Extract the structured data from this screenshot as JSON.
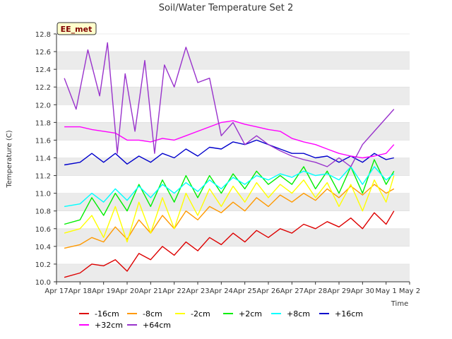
{
  "chart_data": {
    "type": "line",
    "title": "Soil/Water Temperature Set 2",
    "xlabel": "Time",
    "ylabel": "Temperature (C)",
    "ylim": [
      10.0,
      12.8
    ],
    "xlim": [
      "2024-04-17",
      "2024-05-02"
    ],
    "x_tick_labels": [
      "Apr 17",
      "Apr 18",
      "Apr 19",
      "Apr 20",
      "Apr 21",
      "Apr 22",
      "Apr 23",
      "Apr 24",
      "Apr 25",
      "Apr 26",
      "Apr 27",
      "Apr 28",
      "Apr 29",
      "Apr 30",
      "May 1",
      "May 2"
    ],
    "y_ticks": [
      10.0,
      10.2,
      10.4,
      10.6,
      10.8,
      11.0,
      11.2,
      11.4,
      11.6,
      11.8,
      12.0,
      12.2,
      12.4,
      12.6,
      12.8
    ],
    "y_tick_labels": [
      "10.0",
      "10.2",
      "10.4",
      "10.6",
      "10.8",
      "11.0",
      "11.2",
      "11.4",
      "11.6",
      "11.8",
      "12.0",
      "12.2",
      "12.4",
      "12.6",
      "12.8"
    ],
    "grid": "horizontal bands",
    "annotation": "EE_met",
    "legend_position": "bottom",
    "series": [
      {
        "name": "-16cm",
        "color": "#dd0000",
        "x": [
          "2024-04-17T08:00",
          "2024-04-18T00:00",
          "2024-04-18T12:00",
          "2024-04-19T00:00",
          "2024-04-19T12:00",
          "2024-04-20T00:00",
          "2024-04-20T12:00",
          "2024-04-21T00:00",
          "2024-04-21T12:00",
          "2024-04-22T00:00",
          "2024-04-22T12:00",
          "2024-04-23T00:00",
          "2024-04-23T12:00",
          "2024-04-24T00:00",
          "2024-04-24T12:00",
          "2024-04-25T00:00",
          "2024-04-25T12:00",
          "2024-04-26T00:00",
          "2024-04-26T12:00",
          "2024-04-27T00:00",
          "2024-04-27T12:00",
          "2024-04-28T00:00",
          "2024-04-28T12:00",
          "2024-04-29T00:00",
          "2024-04-29T12:00",
          "2024-04-30T00:00",
          "2024-04-30T12:00",
          "2024-05-01T00:00",
          "2024-05-01T08:00"
        ],
        "y": [
          10.05,
          10.1,
          10.2,
          10.18,
          10.25,
          10.12,
          10.32,
          10.25,
          10.4,
          10.3,
          10.45,
          10.35,
          10.5,
          10.42,
          10.55,
          10.45,
          10.58,
          10.5,
          10.6,
          10.55,
          10.65,
          10.6,
          10.68,
          10.62,
          10.72,
          10.6,
          10.78,
          10.65,
          10.8
        ]
      },
      {
        "name": "-8cm",
        "color": "#ff9900",
        "x": [
          "2024-04-17T08:00",
          "2024-04-18T00:00",
          "2024-04-18T12:00",
          "2024-04-19T00:00",
          "2024-04-19T12:00",
          "2024-04-20T00:00",
          "2024-04-20T12:00",
          "2024-04-21T00:00",
          "2024-04-21T12:00",
          "2024-04-22T00:00",
          "2024-04-22T12:00",
          "2024-04-23T00:00",
          "2024-04-23T12:00",
          "2024-04-24T00:00",
          "2024-04-24T12:00",
          "2024-04-25T00:00",
          "2024-04-25T12:00",
          "2024-04-26T00:00",
          "2024-04-26T12:00",
          "2024-04-27T00:00",
          "2024-04-27T12:00",
          "2024-04-28T00:00",
          "2024-04-28T12:00",
          "2024-04-29T00:00",
          "2024-04-29T12:00",
          "2024-04-30T00:00",
          "2024-04-30T12:00",
          "2024-05-01T00:00",
          "2024-05-01T08:00"
        ],
        "y": [
          10.38,
          10.42,
          10.5,
          10.45,
          10.62,
          10.48,
          10.7,
          10.55,
          10.75,
          10.6,
          10.8,
          10.7,
          10.85,
          10.78,
          10.9,
          10.8,
          10.95,
          10.85,
          10.98,
          10.9,
          11.0,
          10.92,
          11.05,
          10.95,
          11.08,
          10.98,
          11.1,
          11.0,
          11.05
        ]
      },
      {
        "name": "-2cm",
        "color": "#ffff00",
        "x": [
          "2024-04-17T08:00",
          "2024-04-18T00:00",
          "2024-04-18T12:00",
          "2024-04-19T00:00",
          "2024-04-19T12:00",
          "2024-04-20T00:00",
          "2024-04-20T12:00",
          "2024-04-21T00:00",
          "2024-04-21T12:00",
          "2024-04-22T00:00",
          "2024-04-22T12:00",
          "2024-04-23T00:00",
          "2024-04-23T12:00",
          "2024-04-24T00:00",
          "2024-04-24T12:00",
          "2024-04-25T00:00",
          "2024-04-25T12:00",
          "2024-04-26T00:00",
          "2024-04-26T12:00",
          "2024-04-27T00:00",
          "2024-04-27T12:00",
          "2024-04-28T00:00",
          "2024-04-28T12:00",
          "2024-04-29T00:00",
          "2024-04-29T12:00",
          "2024-04-30T00:00",
          "2024-04-30T12:00",
          "2024-05-01T00:00",
          "2024-05-01T08:00"
        ],
        "y": [
          10.55,
          10.6,
          10.75,
          10.5,
          10.85,
          10.45,
          10.9,
          10.55,
          10.95,
          10.6,
          11.0,
          10.75,
          11.05,
          10.85,
          11.08,
          10.9,
          11.12,
          10.95,
          11.1,
          11.0,
          11.15,
          10.95,
          11.12,
          10.85,
          11.1,
          10.8,
          11.15,
          10.9,
          11.2
        ]
      },
      {
        "name": "+2cm",
        "color": "#00ee00",
        "x": [
          "2024-04-17T08:00",
          "2024-04-18T00:00",
          "2024-04-18T12:00",
          "2024-04-19T00:00",
          "2024-04-19T12:00",
          "2024-04-20T00:00",
          "2024-04-20T12:00",
          "2024-04-21T00:00",
          "2024-04-21T12:00",
          "2024-04-22T00:00",
          "2024-04-22T12:00",
          "2024-04-23T00:00",
          "2024-04-23T12:00",
          "2024-04-24T00:00",
          "2024-04-24T12:00",
          "2024-04-25T00:00",
          "2024-04-25T12:00",
          "2024-04-26T00:00",
          "2024-04-26T12:00",
          "2024-04-27T00:00",
          "2024-04-27T12:00",
          "2024-04-28T00:00",
          "2024-04-28T12:00",
          "2024-04-29T00:00",
          "2024-04-29T12:00",
          "2024-04-30T00:00",
          "2024-04-30T12:00",
          "2024-05-01T00:00",
          "2024-05-01T08:00"
        ],
        "y": [
          10.65,
          10.7,
          10.95,
          10.75,
          11.0,
          10.8,
          11.1,
          10.85,
          11.15,
          10.9,
          11.2,
          10.95,
          11.2,
          11.0,
          11.22,
          11.05,
          11.25,
          11.1,
          11.2,
          11.1,
          11.3,
          11.05,
          11.25,
          11.0,
          11.3,
          11.0,
          11.38,
          11.1,
          11.25
        ]
      },
      {
        "name": "+8cm",
        "color": "#00ffff",
        "x": [
          "2024-04-17T08:00",
          "2024-04-18T00:00",
          "2024-04-18T12:00",
          "2024-04-19T00:00",
          "2024-04-19T12:00",
          "2024-04-20T00:00",
          "2024-04-20T12:00",
          "2024-04-21T00:00",
          "2024-04-21T12:00",
          "2024-04-22T00:00",
          "2024-04-22T12:00",
          "2024-04-23T00:00",
          "2024-04-23T12:00",
          "2024-04-24T00:00",
          "2024-04-24T12:00",
          "2024-04-25T00:00",
          "2024-04-25T12:00",
          "2024-04-26T00:00",
          "2024-04-26T12:00",
          "2024-04-27T00:00",
          "2024-04-27T12:00",
          "2024-04-28T00:00",
          "2024-04-28T12:00",
          "2024-04-29T00:00",
          "2024-04-29T12:00",
          "2024-04-30T00:00",
          "2024-04-30T12:00",
          "2024-05-01T00:00",
          "2024-05-01T08:00"
        ],
        "y": [
          10.85,
          10.88,
          11.0,
          10.9,
          11.05,
          10.92,
          11.08,
          10.95,
          11.1,
          11.0,
          11.12,
          11.02,
          11.15,
          11.05,
          11.18,
          11.1,
          11.2,
          11.15,
          11.22,
          11.18,
          11.25,
          11.2,
          11.22,
          11.15,
          11.3,
          11.1,
          11.3,
          11.15,
          11.22
        ]
      },
      {
        "name": "+16cm",
        "color": "#0000cc",
        "x": [
          "2024-04-17T08:00",
          "2024-04-18T00:00",
          "2024-04-18T12:00",
          "2024-04-19T00:00",
          "2024-04-19T12:00",
          "2024-04-20T00:00",
          "2024-04-20T12:00",
          "2024-04-21T00:00",
          "2024-04-21T12:00",
          "2024-04-22T00:00",
          "2024-04-22T12:00",
          "2024-04-23T00:00",
          "2024-04-23T12:00",
          "2024-04-24T00:00",
          "2024-04-24T12:00",
          "2024-04-25T00:00",
          "2024-04-25T12:00",
          "2024-04-26T00:00",
          "2024-04-26T12:00",
          "2024-04-27T00:00",
          "2024-04-27T12:00",
          "2024-04-28T00:00",
          "2024-04-28T12:00",
          "2024-04-29T00:00",
          "2024-04-29T12:00",
          "2024-04-30T00:00",
          "2024-04-30T12:00",
          "2024-05-01T00:00",
          "2024-05-01T08:00"
        ],
        "y": [
          11.32,
          11.35,
          11.45,
          11.35,
          11.45,
          11.33,
          11.42,
          11.35,
          11.45,
          11.4,
          11.5,
          11.42,
          11.52,
          11.5,
          11.58,
          11.55,
          11.6,
          11.55,
          11.5,
          11.45,
          11.45,
          11.4,
          11.42,
          11.35,
          11.42,
          11.35,
          11.45,
          11.38,
          11.4
        ]
      },
      {
        "name": "+32cm",
        "color": "#ff00ff",
        "x": [
          "2024-04-17T08:00",
          "2024-04-18T00:00",
          "2024-04-18T12:00",
          "2024-04-19T00:00",
          "2024-04-19T12:00",
          "2024-04-20T00:00",
          "2024-04-20T12:00",
          "2024-04-21T00:00",
          "2024-04-21T12:00",
          "2024-04-22T00:00",
          "2024-04-22T12:00",
          "2024-04-23T00:00",
          "2024-04-23T12:00",
          "2024-04-24T00:00",
          "2024-04-24T12:00",
          "2024-04-25T00:00",
          "2024-04-25T12:00",
          "2024-04-26T00:00",
          "2024-04-26T12:00",
          "2024-04-27T00:00",
          "2024-04-27T12:00",
          "2024-04-28T00:00",
          "2024-04-28T12:00",
          "2024-04-29T00:00",
          "2024-04-29T12:00",
          "2024-04-30T00:00",
          "2024-04-30T12:00",
          "2024-05-01T00:00",
          "2024-05-01T08:00"
        ],
        "y": [
          11.75,
          11.75,
          11.72,
          11.7,
          11.68,
          11.6,
          11.6,
          11.58,
          11.62,
          11.6,
          11.65,
          11.7,
          11.75,
          11.8,
          11.82,
          11.78,
          11.75,
          11.72,
          11.7,
          11.62,
          11.58,
          11.55,
          11.5,
          11.45,
          11.42,
          11.4,
          11.42,
          11.45,
          11.55
        ]
      },
      {
        "name": "+64cm",
        "color": "#9933cc",
        "x": [
          "2024-04-17T08:00",
          "2024-04-17T20:00",
          "2024-04-18T08:00",
          "2024-04-18T20:00",
          "2024-04-19T04:00",
          "2024-04-19T14:00",
          "2024-04-19T22:00",
          "2024-04-20T08:00",
          "2024-04-20T18:00",
          "2024-04-21T04:00",
          "2024-04-21T14:00",
          "2024-04-22T00:00",
          "2024-04-22T12:00",
          "2024-04-23T00:00",
          "2024-04-23T12:00",
          "2024-04-24T00:00",
          "2024-04-24T12:00",
          "2024-04-25T00:00",
          "2024-04-25T12:00",
          "2024-04-26T00:00",
          "2024-04-26T12:00",
          "2024-04-27T00:00",
          "2024-04-27T12:00",
          "2024-04-28T00:00",
          "2024-04-28T12:00",
          "2024-04-29T00:00",
          "2024-04-29T12:00",
          "2024-04-30T00:00",
          "2024-04-30T12:00",
          "2024-05-01T00:00",
          "2024-05-01T08:00"
        ],
        "y": [
          12.3,
          11.95,
          12.62,
          12.1,
          12.7,
          11.45,
          12.35,
          11.7,
          12.5,
          11.45,
          12.45,
          12.2,
          12.65,
          12.25,
          12.3,
          11.65,
          11.8,
          11.55,
          11.65,
          11.55,
          11.48,
          11.42,
          11.38,
          11.35,
          11.3,
          11.4,
          11.3,
          11.55,
          11.7,
          11.85,
          11.95
        ]
      }
    ]
  }
}
